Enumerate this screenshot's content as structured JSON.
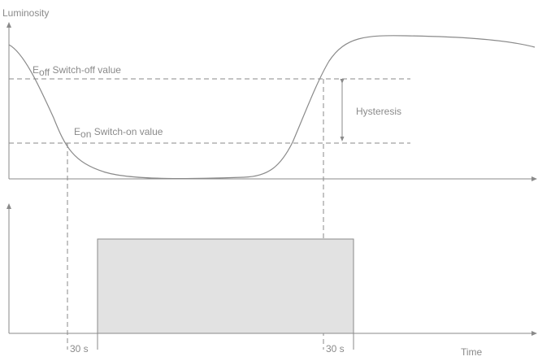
{
  "labels": {
    "y_axis": "Luminosity",
    "x_axis": "Time",
    "e_off_main": "E",
    "e_off_sub": "off",
    "e_off_text": " Switch-off value",
    "e_on_main": "E",
    "e_on_sub": "on",
    "e_on_text": " Switch-on value",
    "hysteresis": "Hysteresis",
    "delay_1": "30 s",
    "delay_2": "30 s"
  },
  "colors": {
    "line": "#8a8a8a",
    "box_fill": "#e2e2e2"
  }
}
